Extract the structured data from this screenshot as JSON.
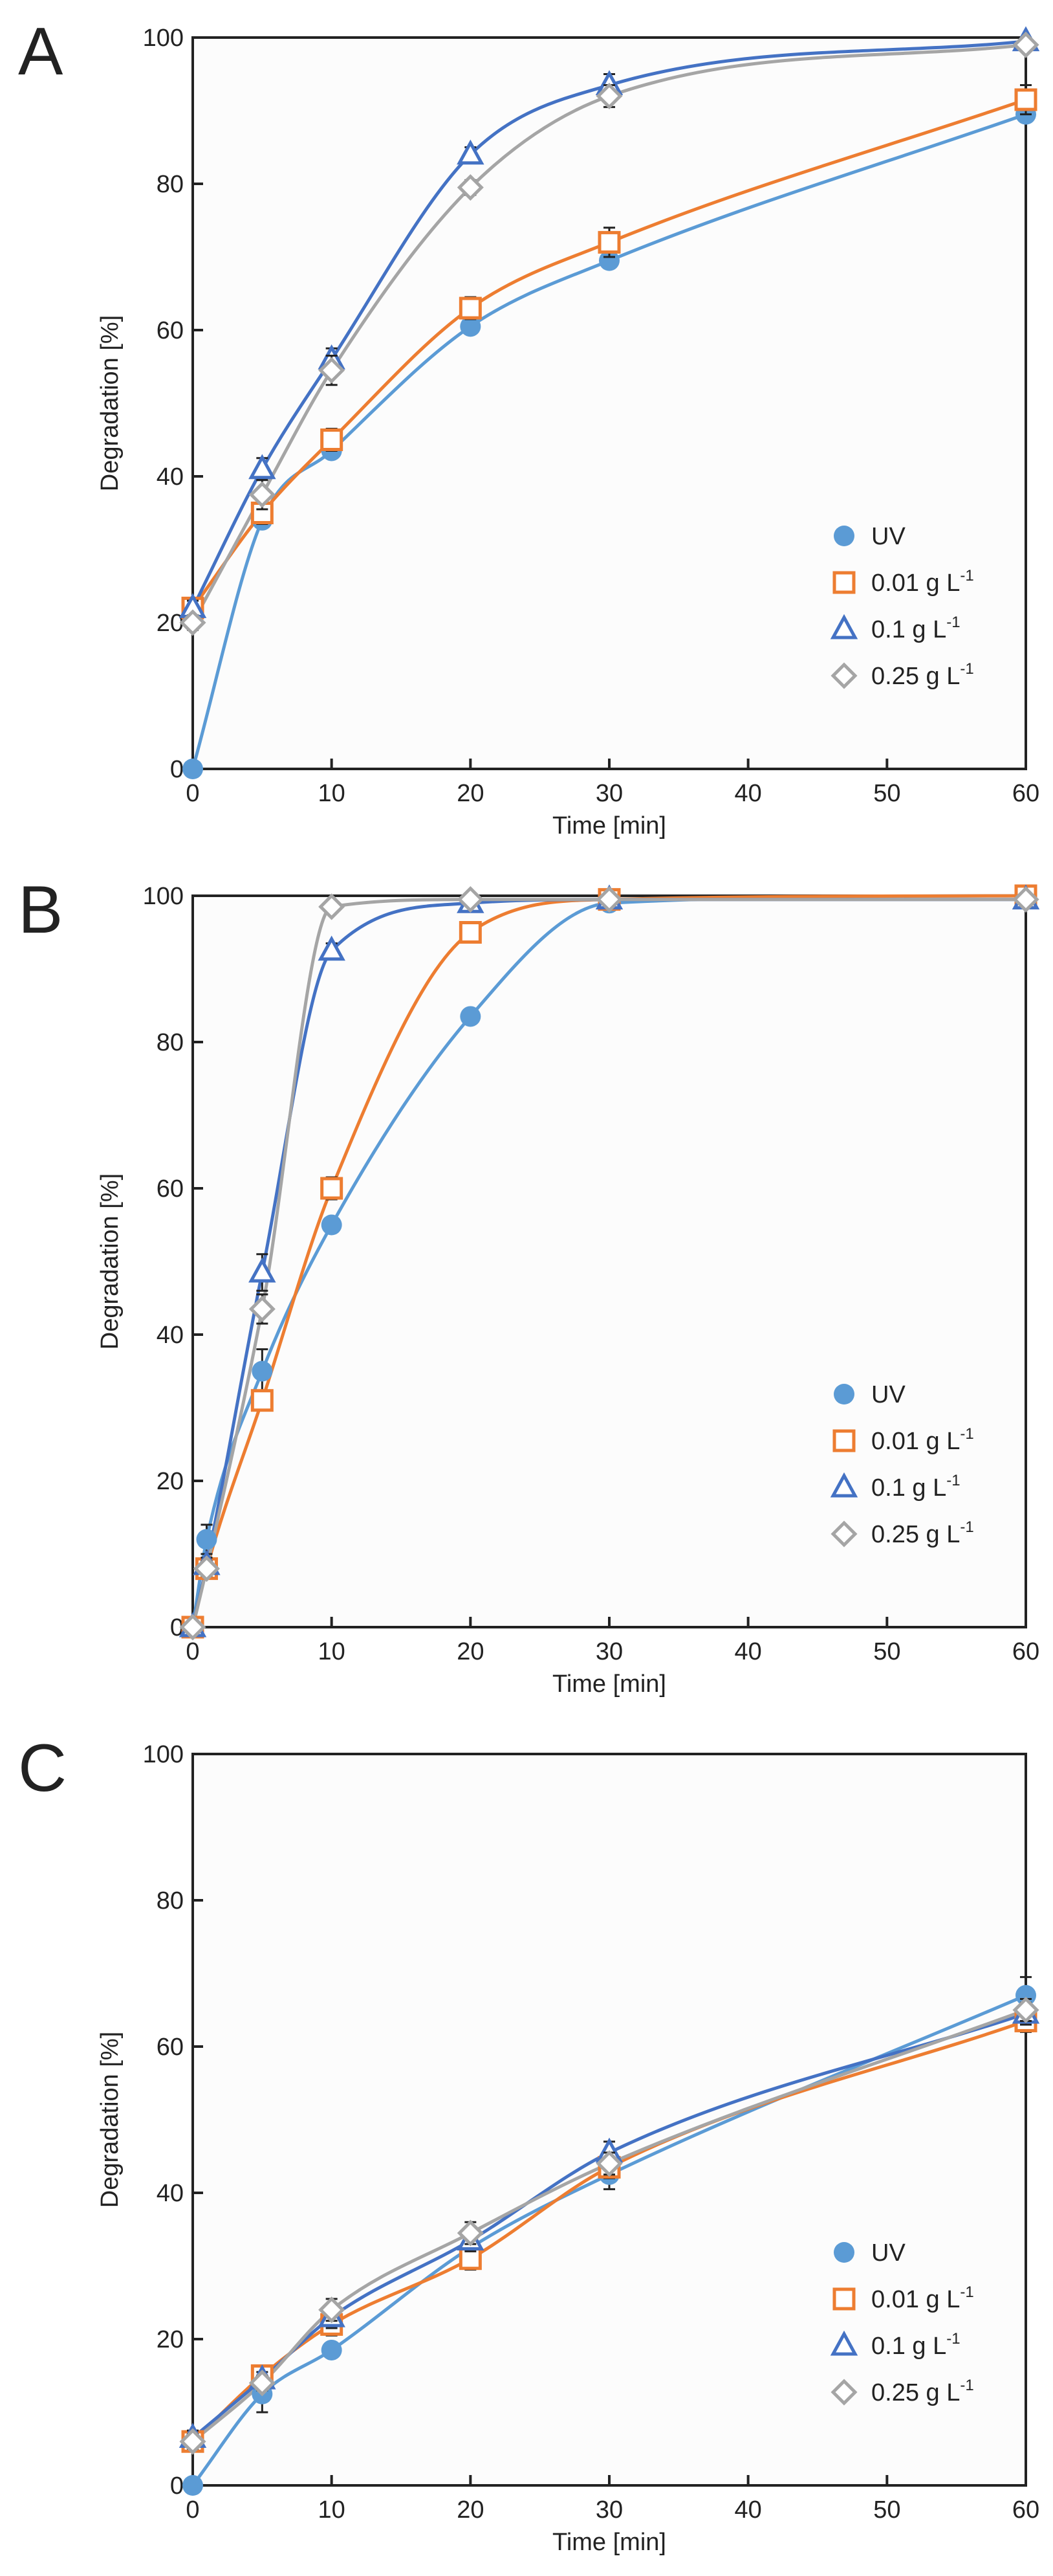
{
  "chart_data": [
    {
      "type": "line",
      "panel_label": "A",
      "xlabel": "Time [min]",
      "ylabel": "Degradation [%]",
      "xlim": [
        0,
        60
      ],
      "ylim": [
        0,
        100
      ],
      "xticks": [
        "0",
        "10",
        "20",
        "30",
        "40",
        "50",
        "60"
      ],
      "yticks": [
        "0",
        "20",
        "40",
        "60",
        "80",
        "100"
      ],
      "legend_position": "bottom-right",
      "series": [
        {
          "name": "UV",
          "unit": "",
          "marker": "circle",
          "color": "#5B9BD5",
          "x": [
            0,
            5,
            10,
            20,
            30,
            60
          ],
          "y": [
            0,
            34,
            43.5,
            60.5,
            69.5,
            89.5
          ],
          "err": [
            0,
            1,
            1,
            1,
            1,
            1
          ]
        },
        {
          "name": "0.01 g L",
          "unit": "-1",
          "marker": "square",
          "color": "#ED7D31",
          "x": [
            0,
            5,
            10,
            20,
            30,
            60
          ],
          "y": [
            22,
            35,
            45,
            63,
            72,
            91.5
          ],
          "err": [
            1,
            1.5,
            1.5,
            1.5,
            2,
            2
          ]
        },
        {
          "name": "0.1 g L",
          "unit": "-1",
          "marker": "triangle",
          "color": "#4472C4",
          "x": [
            0,
            5,
            10,
            20,
            30,
            60
          ],
          "y": [
            22,
            41,
            56,
            84,
            93.5,
            99.5
          ],
          "err": [
            1,
            1.5,
            1.5,
            1,
            1.5,
            0.5
          ]
        },
        {
          "name": "0.25 g L",
          "unit": "-1",
          "marker": "diamond",
          "color": "#A5A5A5",
          "x": [
            0,
            5,
            10,
            20,
            30,
            60
          ],
          "y": [
            20,
            37.5,
            54.5,
            79.5,
            92,
            99
          ],
          "err": [
            1,
            2,
            2,
            1,
            1.5,
            0.5
          ]
        }
      ]
    },
    {
      "type": "line",
      "panel_label": "B",
      "xlabel": "Time [min]",
      "ylabel": "Degradation [%]",
      "xlim": [
        0,
        60
      ],
      "ylim": [
        0,
        100
      ],
      "xticks": [
        "0",
        "10",
        "20",
        "30",
        "40",
        "50",
        "60"
      ],
      "yticks": [
        "0",
        "20",
        "40",
        "60",
        "80",
        "100"
      ],
      "legend_position": "bottom-right",
      "series": [
        {
          "name": "UV",
          "unit": "",
          "marker": "circle",
          "color": "#5B9BD5",
          "x": [
            0,
            1,
            5,
            10,
            20,
            30,
            60
          ],
          "y": [
            0,
            12,
            35,
            55,
            83.5,
            99,
            100
          ],
          "err": [
            0,
            2,
            3,
            1,
            1,
            0.5,
            0.5
          ]
        },
        {
          "name": "0.01 g L",
          "unit": "-1",
          "marker": "square",
          "color": "#ED7D31",
          "x": [
            0,
            1,
            5,
            10,
            20,
            30,
            60
          ],
          "y": [
            0,
            8,
            31,
            60,
            95,
            99.5,
            100
          ],
          "err": [
            0,
            1,
            1,
            1.5,
            1,
            0.5,
            0.5
          ]
        },
        {
          "name": "0.1 g L",
          "unit": "-1",
          "marker": "triangle",
          "color": "#4472C4",
          "x": [
            0,
            1,
            5,
            10,
            20,
            30,
            60
          ],
          "y": [
            0,
            8.5,
            48.5,
            92.5,
            99,
            99.5,
            99.5
          ],
          "err": [
            0,
            1,
            2.5,
            1,
            0.5,
            0.5,
            0.5
          ]
        },
        {
          "name": "0.25 g L",
          "unit": "-1",
          "marker": "diamond",
          "color": "#A5A5A5",
          "x": [
            0,
            1,
            5,
            10,
            20,
            30,
            60
          ],
          "y": [
            0,
            8,
            43.5,
            98.5,
            99.5,
            99.5,
            99.5
          ],
          "err": [
            0,
            1,
            2,
            0.5,
            0.5,
            0.5,
            0.5
          ]
        }
      ]
    },
    {
      "type": "line",
      "panel_label": "C",
      "xlabel": "Time [min]",
      "ylabel": "Degradation [%]",
      "xlim": [
        0,
        60
      ],
      "ylim": [
        0,
        100
      ],
      "xticks": [
        "0",
        "10",
        "20",
        "30",
        "40",
        "50",
        "60"
      ],
      "yticks": [
        "0",
        "20",
        "40",
        "60",
        "80",
        "100"
      ],
      "legend_position": "bottom-right",
      "series": [
        {
          "name": "UV",
          "unit": "",
          "marker": "circle",
          "color": "#5B9BD5",
          "x": [
            0,
            5,
            10,
            20,
            30,
            60
          ],
          "y": [
            0,
            12.5,
            18.5,
            32.5,
            42.5,
            67
          ],
          "err": [
            0,
            2.5,
            1,
            2,
            2,
            2.5
          ]
        },
        {
          "name": "0.01 g L",
          "unit": "-1",
          "marker": "square",
          "color": "#ED7D31",
          "x": [
            0,
            5,
            10,
            20,
            30,
            60
          ],
          "y": [
            6,
            15,
            22,
            31,
            43.5,
            63.5
          ],
          "err": [
            1,
            1,
            1.5,
            1.5,
            1.5,
            1.5
          ]
        },
        {
          "name": "0.1 g L",
          "unit": "-1",
          "marker": "triangle",
          "color": "#4472C4",
          "x": [
            0,
            5,
            10,
            20,
            30,
            60
          ],
          "y": [
            6.5,
            14.5,
            23,
            33.5,
            45.5,
            64.5
          ],
          "err": [
            1,
            1,
            1.5,
            1.5,
            1.5,
            1.5
          ]
        },
        {
          "name": "0.25 g L",
          "unit": "-1",
          "marker": "diamond",
          "color": "#A5A5A5",
          "x": [
            0,
            5,
            10,
            20,
            30,
            60
          ],
          "y": [
            6,
            14,
            24,
            34.5,
            44,
            65
          ],
          "err": [
            1,
            1,
            1.5,
            1.5,
            1.5,
            1.5
          ]
        }
      ]
    }
  ]
}
